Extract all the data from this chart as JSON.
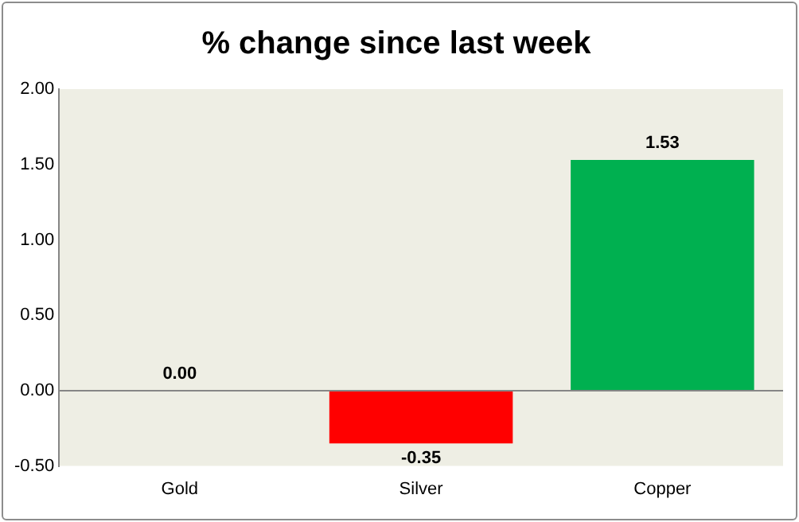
{
  "chart_data": {
    "type": "bar",
    "title": "% change since last week",
    "categories": [
      "Gold",
      "Silver",
      "Copper"
    ],
    "values": [
      0,
      -0.35,
      1.53
    ],
    "colors": [
      "#00b050",
      "#ff0000",
      "#00b050"
    ],
    "value_labels": [
      "0.00",
      "-0.35",
      "1.53"
    ],
    "ylim": [
      -0.5,
      2
    ],
    "yticks": [
      {
        "value": -0.5,
        "label": "-0.50"
      },
      {
        "value": 0,
        "label": "0.00"
      },
      {
        "value": 0.5,
        "label": "0.50"
      },
      {
        "value": 1,
        "label": "1.00"
      },
      {
        "value": 1.5,
        "label": "1.50"
      },
      {
        "value": 2,
        "label": "2.00"
      }
    ],
    "ref_lines": [
      {
        "axis": "y",
        "value": 0,
        "color": "#868686"
      }
    ],
    "grid": false,
    "legend": false
  }
}
